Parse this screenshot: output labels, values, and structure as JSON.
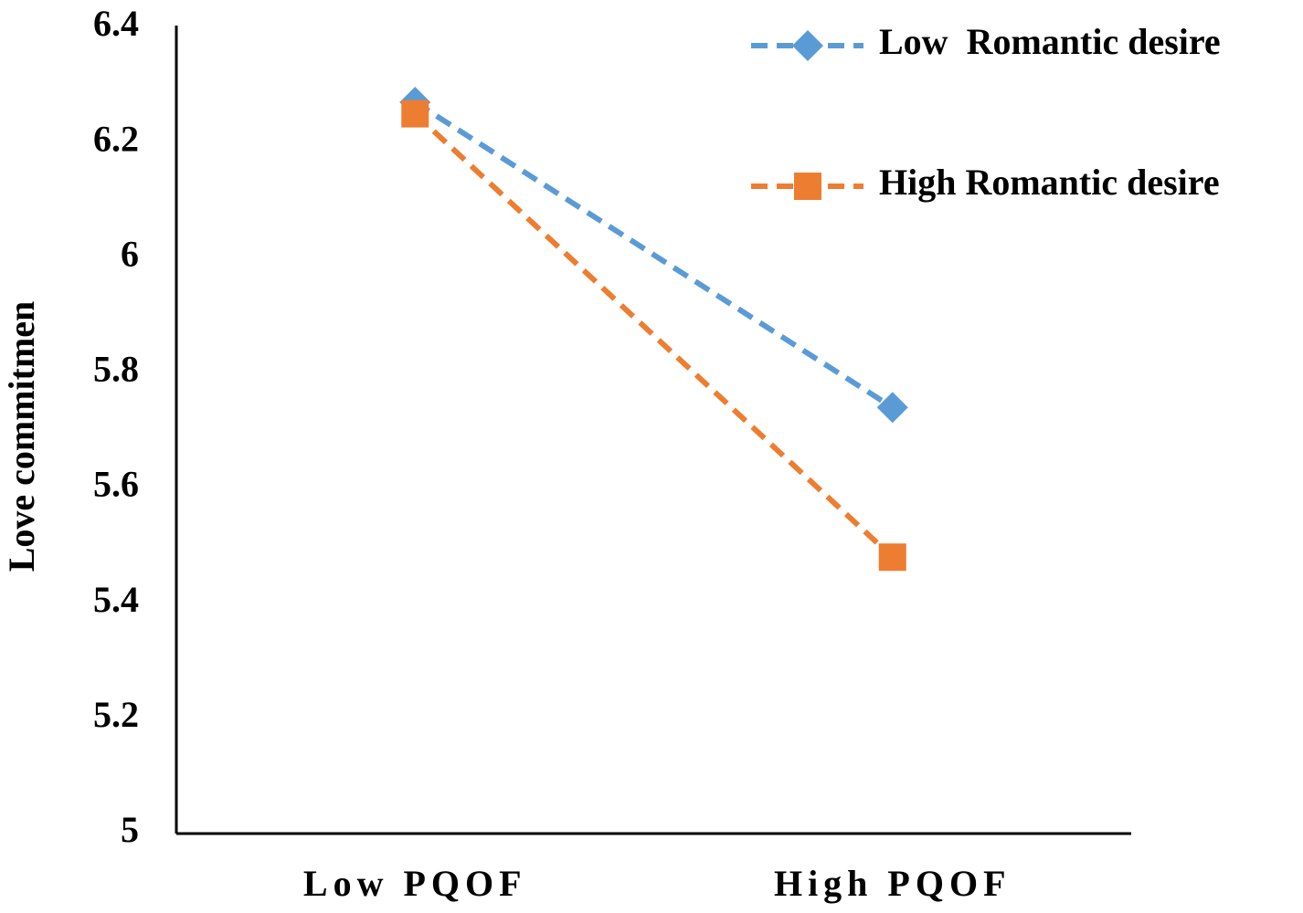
{
  "chart_data": {
    "type": "line",
    "y_label": "Love commitmen",
    "categories": [
      "Low PQOF",
      "High PQOF"
    ],
    "series": [
      {
        "name": "Low  Romantic desire",
        "color": "#5b9bd5",
        "marker": "diamond",
        "values": [
          6.27,
          5.74
        ]
      },
      {
        "name": "High Romantic desire",
        "color": "#ed7d31",
        "marker": "square",
        "values": [
          6.25,
          5.48
        ]
      }
    ],
    "ylim": [
      5,
      6.4
    ],
    "yticks": [
      5,
      5.2,
      5.4,
      5.6,
      5.8,
      6,
      6.2,
      6.4
    ],
    "grid": false,
    "legend": "top-right"
  }
}
